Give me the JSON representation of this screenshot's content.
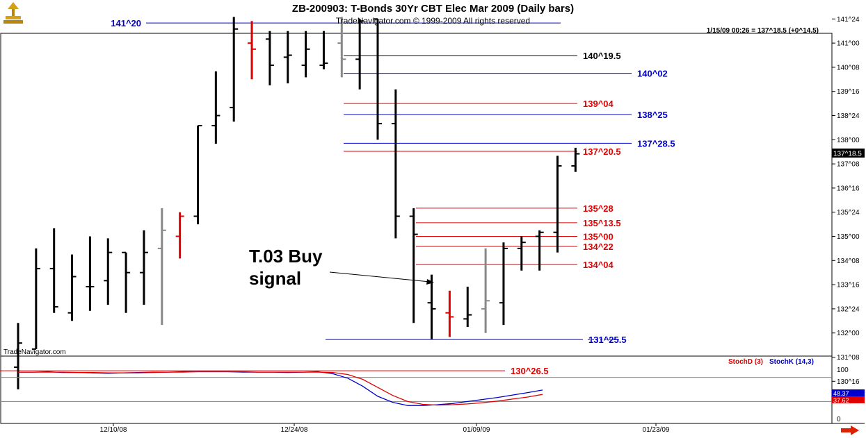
{
  "header": {
    "title": "ZB-200903:  T-Bonds 30Yr CBT Elec Mar 2009  (Daily bars)",
    "subtitle": "TradeNavigator.com © 1999-2009 All rights reserved",
    "quote": "1/15/09 00:26 = 137^18.5 (+0^14.5)"
  },
  "watermark": "TradeNavigator.com",
  "price_tag": "137^18.5",
  "indicator": {
    "stochd_label": "StochD (3)",
    "stochk_label": "StochK (14,3)",
    "axis_labels": [
      "100",
      "0"
    ],
    "stochk_last": "48.37",
    "stochd_last": "37.62"
  },
  "colors": {
    "background": "#ffffff",
    "bar_black": "#000000",
    "bar_red": "#e00000",
    "bar_gray": "#888888",
    "level_blue": "#0000cc",
    "level_red": "#e00000",
    "stochd": "#e00000",
    "stochk": "#0000cc"
  },
  "chart_data": {
    "type": "ohlc",
    "price_units": "32nds",
    "y_ticks": [
      "141^24",
      "141^00",
      "140^08",
      "139^16",
      "138^24",
      "138^00",
      "137^08",
      "136^16",
      "135^24",
      "135^00",
      "134^08",
      "133^16",
      "132^24",
      "132^00",
      "131^08",
      "130^16"
    ],
    "x_tick_labels": [
      "12/10/08",
      "12/24/08",
      "01/09/09",
      "01/23/09"
    ],
    "bars": [
      {
        "o": "130^30",
        "h": "132^10",
        "l": "130^08",
        "c": "131^22",
        "color": "black"
      },
      {
        "o": "131^16",
        "h": "134^20",
        "l": "131^16",
        "c": "134^00",
        "color": "black"
      },
      {
        "o": "134^00",
        "h": "135^08",
        "l": "132^20",
        "c": "132^26",
        "color": "black"
      },
      {
        "o": "132^20",
        "h": "134^14",
        "l": "132^12",
        "c": "133^24",
        "color": "black"
      },
      {
        "o": "133^14",
        "h": "135^00",
        "l": "132^22",
        "c": "133^14",
        "color": "black"
      },
      {
        "o": "133^20",
        "h": "134^30",
        "l": "132^28",
        "c": "134^16",
        "color": "black"
      },
      {
        "o": "134^16",
        "h": "134^16",
        "l": "132^20",
        "c": "133^28",
        "color": "black"
      },
      {
        "o": "133^28",
        "h": "135^06",
        "l": "132^28",
        "c": "134^16",
        "color": "black"
      },
      {
        "o": "134^20",
        "h": "135^28",
        "l": "132^08",
        "c": "135^06",
        "color": "gray"
      },
      {
        "o": "135^00",
        "h": "135^24",
        "l": "134^10",
        "c": "135^20",
        "color": "red"
      },
      {
        "o": "135^20",
        "h": "138^14",
        "l": "135^12",
        "c": "138^14",
        "color": "black"
      },
      {
        "o": "138^14",
        "h": "140^04",
        "l": "137^28",
        "c": "138^24",
        "color": "black"
      },
      {
        "o": "139^00",
        "h": "141^26",
        "l": "138^18",
        "c": "141^14",
        "color": "black"
      },
      {
        "o": "141^00",
        "h": "141^22",
        "l": "139^28",
        "c": "140^26",
        "color": "red"
      },
      {
        "o": "141^04",
        "h": "141^12",
        "l": "139^22",
        "c": "140^10",
        "color": "black"
      },
      {
        "o": "140^18",
        "h": "141^12",
        "l": "139^24",
        "c": "140^20",
        "color": "black"
      },
      {
        "o": "140^10",
        "h": "141^12",
        "l": "139^30",
        "c": "140^26",
        "color": "black"
      },
      {
        "o": "140^10",
        "h": "141^12",
        "l": "140^06",
        "c": "140^12",
        "color": "black"
      },
      {
        "o": "141^00",
        "h": "141^26",
        "l": "139^30",
        "c": "140^16",
        "color": "gray"
      },
      {
        "o": "140^16",
        "h": "141^24",
        "l": "139^18",
        "c": "141^22",
        "color": "black"
      },
      {
        "o": "141^24",
        "h": "141^24",
        "l": "138^00",
        "c": "138^16",
        "color": "black"
      },
      {
        "o": "138^16",
        "h": "139^18",
        "l": "134^30",
        "c": "135^20",
        "color": "black"
      },
      {
        "o": "135^20",
        "h": "135^28",
        "l": "132^10",
        "c": "135^02",
        "color": "black"
      },
      {
        "o": "132^30",
        "h": "133^26",
        "l": "131^26",
        "c": "132^24",
        "color": "black"
      },
      {
        "o": "132^20",
        "h": "133^10",
        "l": "131^28",
        "c": "132^16",
        "color": "red"
      },
      {
        "o": "132^14",
        "h": "133^14",
        "l": "132^06",
        "c": "132^18",
        "color": "black"
      },
      {
        "o": "132^24",
        "h": "134^20",
        "l": "132^00",
        "c": "133^00",
        "color": "gray"
      },
      {
        "o": "132^30",
        "h": "134^26",
        "l": "132^08",
        "c": "134^20",
        "color": "black"
      },
      {
        "o": "134^20",
        "h": "135^00",
        "l": "133^30",
        "c": "134^26",
        "color": "black"
      },
      {
        "o": "135^00",
        "h": "135^06",
        "l": "133^30",
        "c": "135^04",
        "color": "black"
      },
      {
        "o": "135^04",
        "h": "137^16",
        "l": "134^16",
        "c": "137^06",
        "color": "black"
      },
      {
        "o": "137^06",
        "h": "137^24",
        "l": "137^00",
        "c": "137^18",
        "color": "black"
      }
    ],
    "levels": [
      {
        "label": "141^20",
        "color": "blue"
      },
      {
        "label": "140^19.5",
        "color": "black"
      },
      {
        "label": "140^02",
        "color": "blue"
      },
      {
        "label": "139^04",
        "color": "red"
      },
      {
        "label": "138^25",
        "color": "blue"
      },
      {
        "label": "137^28.5",
        "color": "blue"
      },
      {
        "label": "137^20.5",
        "color": "red"
      },
      {
        "label": "135^28",
        "color": "red"
      },
      {
        "label": "135^13.5",
        "color": "red"
      },
      {
        "label": "135^00",
        "color": "red"
      },
      {
        "label": "134^22",
        "color": "red"
      },
      {
        "label": "134^04",
        "color": "red"
      },
      {
        "label": "131^25.5",
        "color": "blue"
      },
      {
        "label": "130^26.5",
        "color": "red"
      }
    ],
    "annotation": {
      "line1": "T.03 Buy",
      "line2": "signal"
    },
    "stoch_k": [
      93,
      93,
      94,
      92,
      92,
      91,
      90,
      91,
      92,
      93,
      93,
      94,
      94,
      94,
      94,
      93,
      93,
      93,
      92,
      93,
      94,
      89,
      78,
      58,
      33,
      18,
      10,
      10,
      12,
      15,
      20,
      25,
      30,
      36,
      42,
      48.37
    ],
    "stoch_d": [
      93,
      93,
      93,
      93,
      92,
      92,
      91,
      91,
      91,
      92,
      93,
      93,
      94,
      94,
      94,
      94,
      93,
      93,
      93,
      93,
      93,
      92,
      87,
      75,
      55,
      35,
      20,
      13,
      11,
      12,
      14,
      17,
      21,
      26,
      31,
      37.62
    ]
  }
}
